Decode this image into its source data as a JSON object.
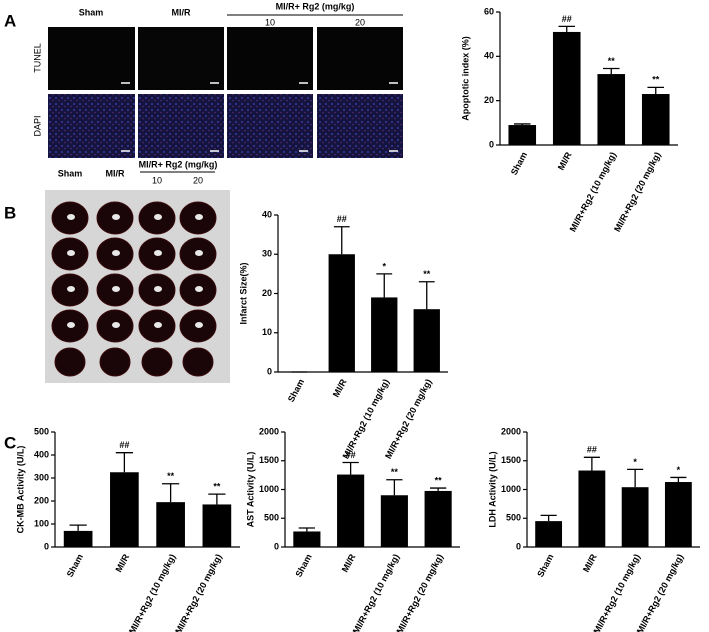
{
  "panel_labels": [
    "A",
    "B",
    "C"
  ],
  "image_panels": [
    {
      "column_labels": [
        "Sham",
        "MI/R"
      ],
      "group_label": "MI/R+ Rg2 (mg/kg)",
      "doses": [
        "10",
        "20"
      ],
      "row_labels": [
        "TUNEL",
        "DAPI"
      ]
    },
    {
      "column_labels": [
        "Sham",
        "MI/R"
      ],
      "group_label": "MI/R+ Rg2 (mg/kg)",
      "doses": [
        "10",
        "20"
      ]
    }
  ],
  "chart_data": [
    {
      "type": "bar",
      "y_label": "Apoptotic index (%)",
      "categories": [
        "Sham",
        "MI/R",
        "MI/R+Rg2 (10 mg/kg)",
        "MI/R+Rg2 (20 mg/kg)"
      ],
      "values": [
        9,
        51,
        32,
        23
      ],
      "errors": [
        0.5,
        2.5,
        2.5,
        3
      ],
      "annotations": [
        null,
        "##",
        "**",
        "**"
      ],
      "color": "#000000",
      "ylim": [
        0,
        60
      ],
      "yticks": [
        0,
        20,
        40,
        60
      ]
    },
    {
      "type": "bar",
      "y_label": "Infarct Size(%)",
      "categories": [
        "Sham",
        "MI/R",
        "MI/R+Rg2 (10 mg/kg)",
        "MI/R+Rg2 (20 mg/kg)"
      ],
      "values": [
        0,
        30,
        19,
        16
      ],
      "errors": [
        0,
        7,
        6,
        7
      ],
      "annotations": [
        null,
        "##",
        "*",
        "**"
      ],
      "color": "#000000",
      "ylim": [
        0,
        40
      ],
      "yticks": [
        0,
        10,
        20,
        30,
        40
      ]
    },
    {
      "type": "bar",
      "y_label": "CK-MB Activity (U/L)",
      "categories": [
        "Sham",
        "MI/R",
        "MI/R+Rg2 (10 mg/kg)",
        "MI/R+Rg2 (20 mg/kg)"
      ],
      "values": [
        70,
        325,
        195,
        185
      ],
      "errors": [
        25,
        85,
        80,
        45
      ],
      "annotations": [
        null,
        "##",
        "**",
        "**"
      ],
      "color": "#000000",
      "ylim": [
        0,
        500
      ],
      "yticks": [
        0,
        100,
        200,
        300,
        400,
        500
      ]
    },
    {
      "type": "bar",
      "y_label": "AST Activity (U/L)",
      "categories": [
        "Sham",
        "MI/R",
        "MI/R+Rg2 (10 mg/kg)",
        "MI/R+Rg2 (20 mg/kg)"
      ],
      "values": [
        270,
        1260,
        900,
        975
      ],
      "errors": [
        60,
        210,
        270,
        50
      ],
      "annotations": [
        null,
        "##",
        "**",
        "**"
      ],
      "color": "#000000",
      "ylim": [
        0,
        2000
      ],
      "yticks": [
        0,
        500,
        1000,
        1500,
        2000
      ]
    },
    {
      "type": "bar",
      "y_label": "LDH Activity (U/L)",
      "categories": [
        "Sham",
        "MI/R",
        "MI/R+Rg2 (10 mg/kg)",
        "MI/R+Rg2 (20 mg/kg)"
      ],
      "values": [
        450,
        1330,
        1040,
        1130
      ],
      "errors": [
        100,
        230,
        310,
        80
      ],
      "annotations": [
        null,
        "##",
        "*",
        "*"
      ],
      "color": "#000000",
      "ylim": [
        0,
        2000
      ],
      "yticks": [
        0,
        500,
        1000,
        1500,
        2000
      ]
    }
  ]
}
